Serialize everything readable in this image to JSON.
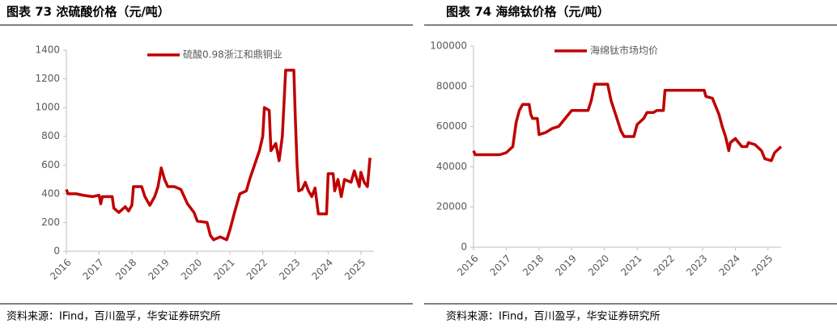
{
  "chart_data": [
    {
      "type": "line",
      "title": "图表 73 浓硫酸价格（元/吨）",
      "source": "资料来源：IFind，百川盈孚，华安证券研究所",
      "legend": "top",
      "xlim": [
        2016,
        2025.4
      ],
      "xticks": [
        2016,
        2017,
        2018,
        2019,
        2020,
        2021,
        2022,
        2023,
        2024,
        2025
      ],
      "ylim": [
        0,
        1400
      ],
      "yticks": [
        0,
        200,
        400,
        600,
        800,
        1000,
        1200,
        1400
      ],
      "x": [
        2016.0,
        2016.05,
        2016.3,
        2016.5,
        2016.8,
        2017.0,
        2017.05,
        2017.1,
        2017.4,
        2017.45,
        2017.6,
        2017.8,
        2017.9,
        2018.0,
        2018.05,
        2018.3,
        2018.4,
        2018.55,
        2018.7,
        2018.8,
        2018.9,
        2019.0,
        2019.1,
        2019.3,
        2019.5,
        2019.7,
        2019.9,
        2020.0,
        2020.3,
        2020.4,
        2020.5,
        2020.7,
        2020.9,
        2021.0,
        2021.15,
        2021.3,
        2021.5,
        2021.6,
        2021.75,
        2021.9,
        2022.0,
        2022.05,
        2022.2,
        2022.25,
        2022.4,
        2022.5,
        2022.6,
        2022.7,
        2022.95,
        2023.0,
        2023.05,
        2023.1,
        2023.2,
        2023.3,
        2023.4,
        2023.5,
        2023.6,
        2023.7,
        2023.95,
        2024.0,
        2024.15,
        2024.2,
        2024.3,
        2024.4,
        2024.5,
        2024.7,
        2024.8,
        2024.95,
        2025.0,
        2025.1,
        2025.2,
        2025.28
      ],
      "series": [
        {
          "name": "硫酸0.98浙江和鼎铜业",
          "color": "#c00000",
          "values": [
            430,
            400,
            400,
            390,
            380,
            390,
            330,
            380,
            380,
            300,
            270,
            310,
            280,
            320,
            450,
            450,
            380,
            320,
            380,
            450,
            580,
            500,
            450,
            450,
            430,
            330,
            270,
            210,
            200,
            110,
            80,
            100,
            80,
            150,
            280,
            400,
            420,
            500,
            600,
            700,
            800,
            1000,
            980,
            700,
            750,
            630,
            800,
            1260,
            1260,
            900,
            600,
            420,
            430,
            480,
            420,
            380,
            440,
            260,
            260,
            540,
            540,
            420,
            500,
            380,
            500,
            480,
            560,
            450,
            550,
            480,
            450,
            650
          ]
        }
      ]
    },
    {
      "type": "line",
      "title": "图表 74 海绵钛价格（元/吨）",
      "source": "资料来源：IFind，百川盈孚，华安证券研究所",
      "legend": "top",
      "xlim": [
        2016,
        2025.4
      ],
      "xticks": [
        2016,
        2017,
        2018,
        2019,
        2020,
        2021,
        2022,
        2023,
        2024,
        2025
      ],
      "ylim": [
        0,
        100000
      ],
      "yticks": [
        0,
        20000,
        40000,
        60000,
        80000,
        100000
      ],
      "x": [
        2016.0,
        2016.05,
        2016.8,
        2017.0,
        2017.2,
        2017.3,
        2017.4,
        2017.5,
        2017.7,
        2017.75,
        2017.8,
        2017.95,
        2018.0,
        2018.2,
        2018.4,
        2018.6,
        2018.8,
        2019.0,
        2019.5,
        2019.6,
        2019.7,
        2020.1,
        2020.2,
        2020.4,
        2020.5,
        2020.6,
        2020.9,
        2021.0,
        2021.2,
        2021.3,
        2021.5,
        2021.6,
        2021.8,
        2021.85,
        2023.05,
        2023.1,
        2023.3,
        2023.5,
        2023.6,
        2023.7,
        2023.8,
        2023.85,
        2024.0,
        2024.1,
        2024.2,
        2024.35,
        2024.4,
        2024.6,
        2024.8,
        2024.9,
        2025.1,
        2025.2,
        2025.4
      ],
      "series": [
        {
          "name": "海绵钛市场均价",
          "color": "#c00000",
          "values": [
            48000,
            46000,
            46000,
            47000,
            50000,
            62000,
            68000,
            71000,
            71000,
            66000,
            64000,
            64000,
            56000,
            57000,
            59000,
            60000,
            64000,
            68000,
            68000,
            73000,
            81000,
            81000,
            73000,
            63000,
            58000,
            55000,
            55000,
            61000,
            64000,
            67000,
            67000,
            68000,
            68000,
            78000,
            78000,
            75000,
            74000,
            66000,
            60000,
            55000,
            48000,
            52000,
            54000,
            52000,
            50000,
            50000,
            52000,
            51000,
            48000,
            44000,
            43000,
            47000,
            50000
          ]
        }
      ]
    }
  ]
}
